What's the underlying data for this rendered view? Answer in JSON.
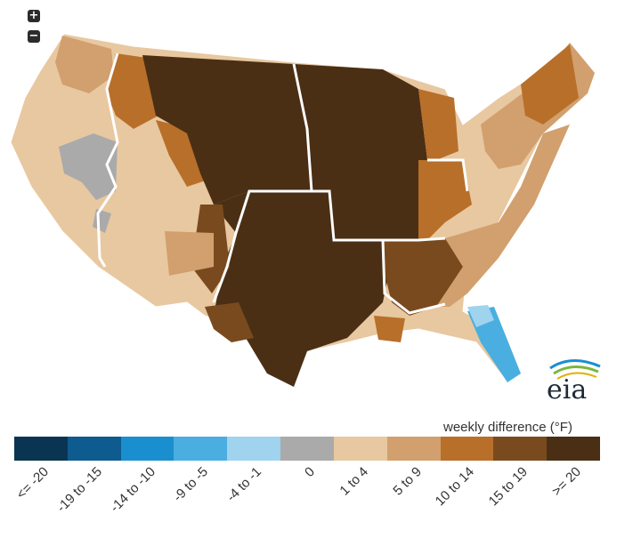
{
  "controls": {
    "zoom_in": "+",
    "zoom_out": "−"
  },
  "logo": {
    "text": "eia"
  },
  "legend": {
    "title": "weekly difference (°F)",
    "classes": [
      {
        "label": "<= -20",
        "color": "#0a3552"
      },
      {
        "label": "-19 to -15",
        "color": "#0d5b8f"
      },
      {
        "label": "-14 to -10",
        "color": "#1a8fcf"
      },
      {
        "label": "-9 to -5",
        "color": "#4aaee0"
      },
      {
        "label": "-4 to -1",
        "color": "#9fd3ee"
      },
      {
        "label": "0",
        "color": "#aaaaaa"
      },
      {
        "label": "1 to 4",
        "color": "#e8c8a0"
      },
      {
        "label": "5 to 9",
        "color": "#d1a06e"
      },
      {
        "label": "10 to 14",
        "color": "#b86f2a"
      },
      {
        "label": "15 to 19",
        "color": "#7a4a1f"
      },
      {
        "label": ">= 20",
        "color": "#4a2f14"
      }
    ]
  },
  "map_regions": [
    {
      "name": "pacific-west",
      "class": "1 to 4"
    },
    {
      "name": "great-basin",
      "class": "0"
    },
    {
      "name": "rockies",
      "class": "1 to 4"
    },
    {
      "name": "north-plains",
      "class": ">= 20"
    },
    {
      "name": "south-central",
      "class": ">= 20"
    },
    {
      "name": "midwest",
      "class": ">= 20"
    },
    {
      "name": "southeast",
      "class": "5 to 9"
    },
    {
      "name": "northeast",
      "class": "5 to 9"
    },
    {
      "name": "south-florida",
      "class": "-9 to -5"
    }
  ]
}
